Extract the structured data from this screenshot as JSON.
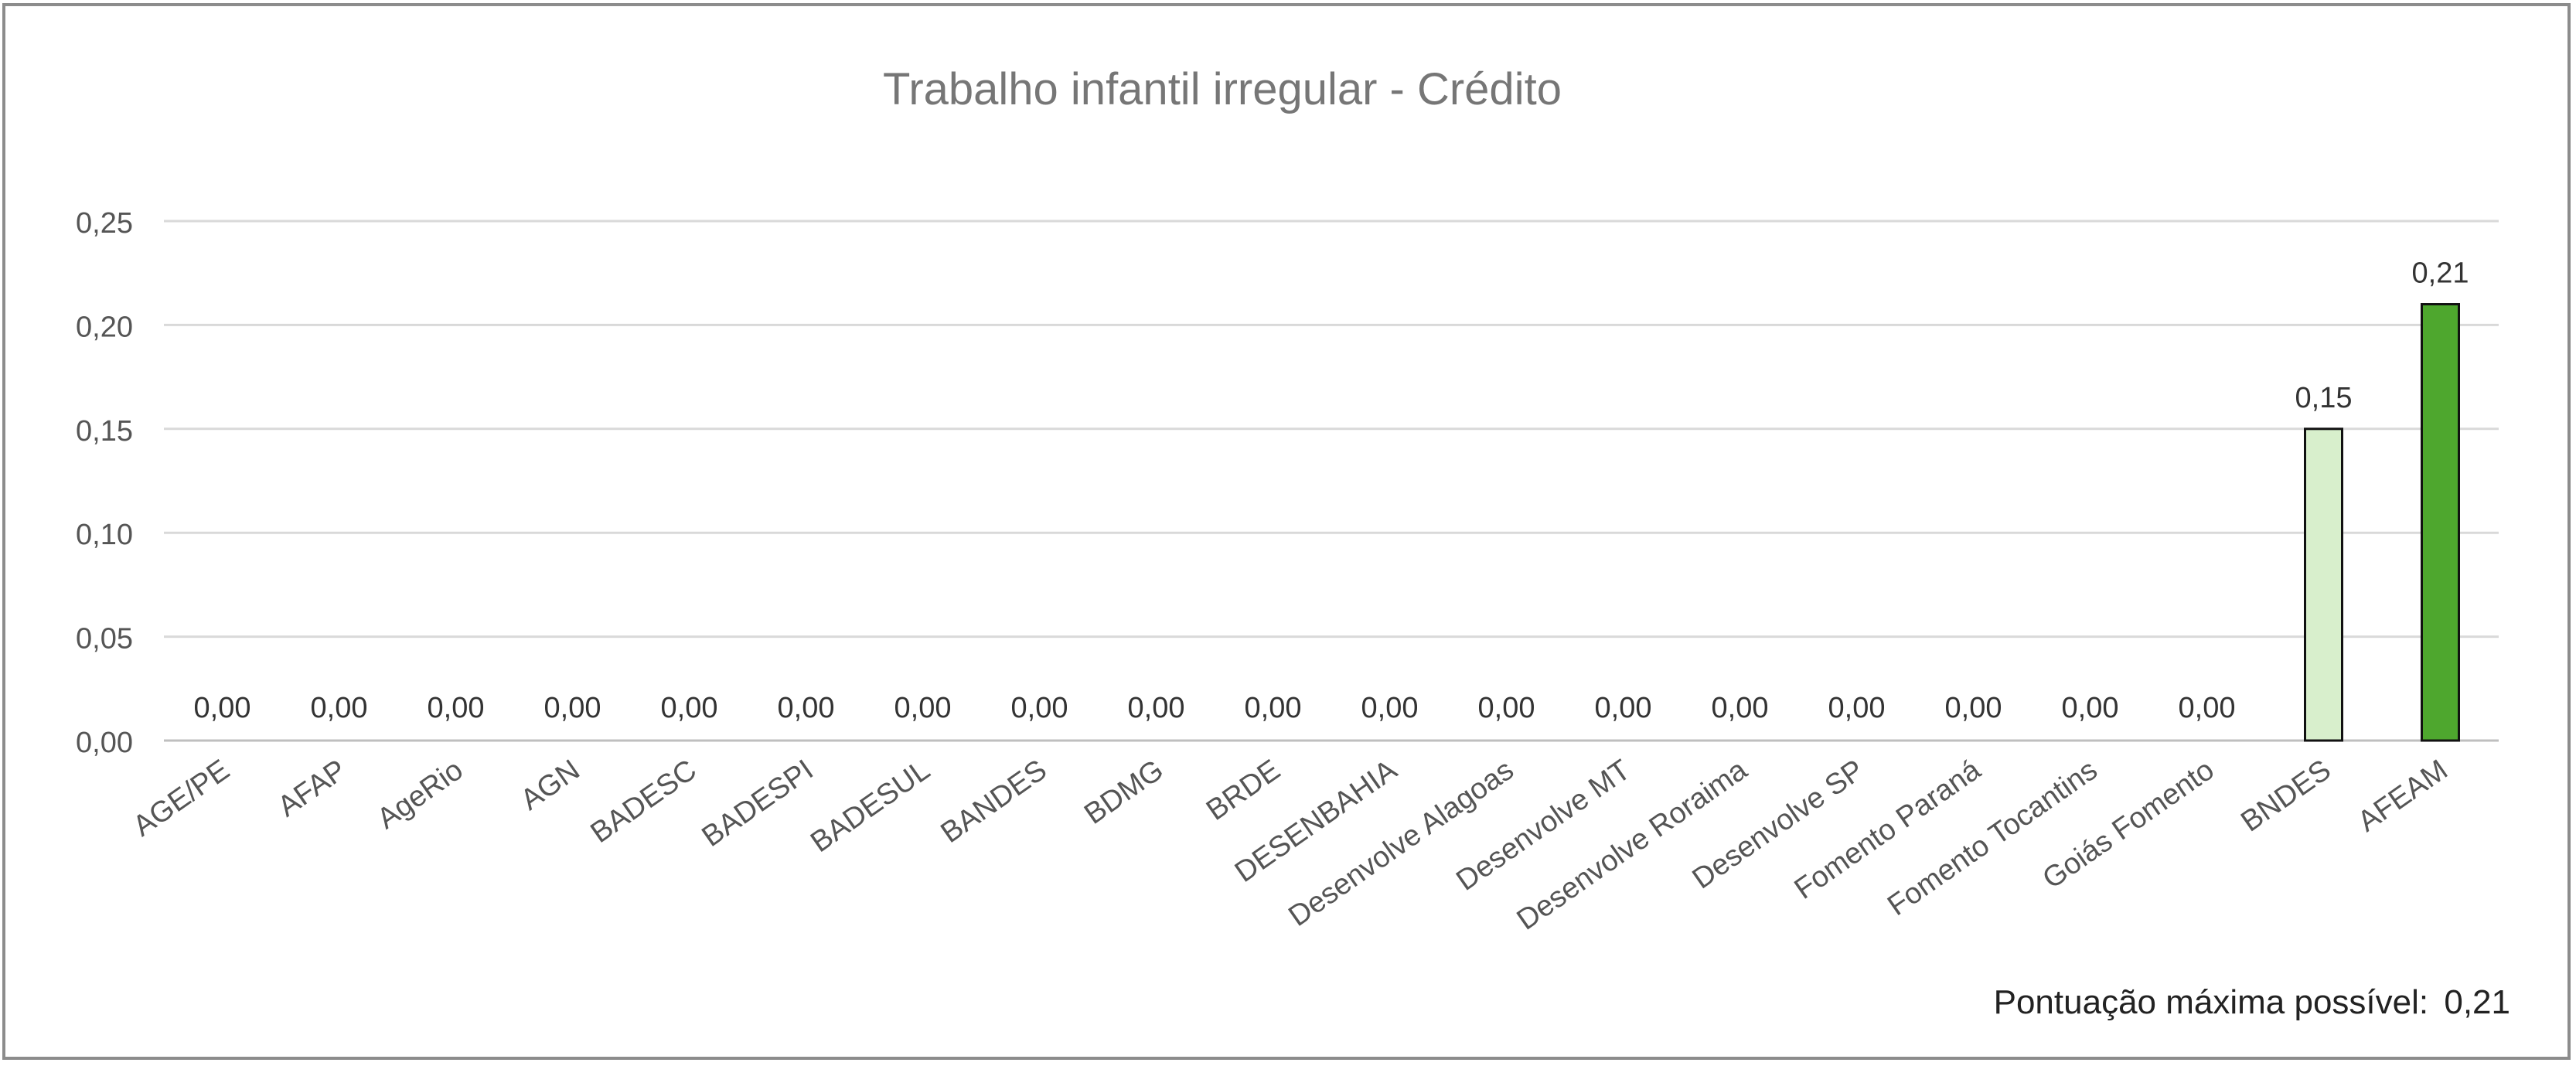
{
  "chart_data": {
    "type": "bar",
    "title": "Trabalho infantil irregular - Crédito",
    "categories": [
      "AGE/PE",
      "AFAP",
      "AgeRio",
      "AGN",
      "BADESC",
      "BADESPI",
      "BADESUL",
      "BANDES",
      "BDMG",
      "BRDE",
      "DESENBAHIA",
      "Desenvolve Alagoas",
      "Desenvolve MT",
      "Desenvolve Roraima",
      "Desenvolve SP",
      "Fomento Paraná",
      "Fomento Tocantins",
      "Goiás Fomento",
      "BNDES",
      "AFEAM"
    ],
    "values": [
      0.0,
      0.0,
      0.0,
      0.0,
      0.0,
      0.0,
      0.0,
      0.0,
      0.0,
      0.0,
      0.0,
      0.0,
      0.0,
      0.0,
      0.0,
      0.0,
      0.0,
      0.0,
      0.15,
      0.21
    ],
    "data_labels": [
      "0,00",
      "0,00",
      "0,00",
      "0,00",
      "0,00",
      "0,00",
      "0,00",
      "0,00",
      "0,00",
      "0,00",
      "0,00",
      "0,00",
      "0,00",
      "0,00",
      "0,00",
      "0,00",
      "0,00",
      "0,00",
      "0,15",
      "0,21"
    ],
    "yticks": [
      0,
      0.05,
      0.1,
      0.15,
      0.2,
      0.25
    ],
    "ytick_labels": [
      "0,00",
      "0,05",
      "0,10",
      "0,15",
      "0,20",
      "0,25"
    ],
    "ylim": [
      0,
      0.25
    ],
    "grid": true,
    "bar_colors": {
      "BNDES": "#d8efcc",
      "AFEAM": "#4ea72e"
    },
    "xlabel": "",
    "ylabel": ""
  },
  "note": {
    "label": "Pontuação máxima possível:",
    "value": "0,21"
  }
}
